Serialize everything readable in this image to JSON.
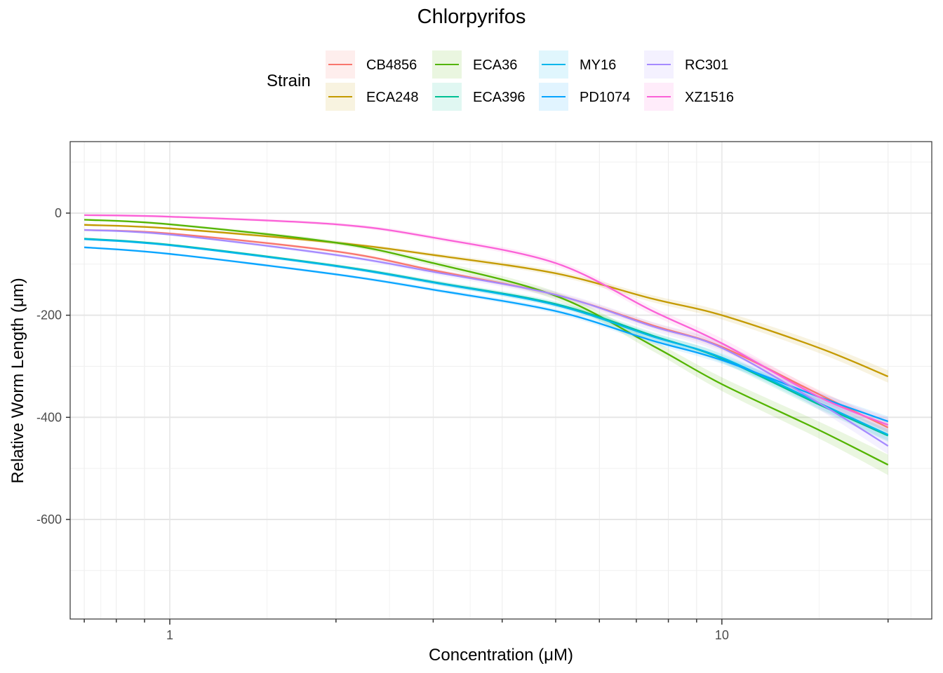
{
  "chart_data": {
    "type": "line",
    "title": "Chlorpyrifos",
    "xlabel": "Concentration (μM)",
    "ylabel": "Relative Worm Length (μm)",
    "x_scale": "log10",
    "xlim": [
      0.66,
      24
    ],
    "ylim": [
      -795,
      140
    ],
    "x_ticks": [
      {
        "value": 1,
        "label": "1"
      },
      {
        "value": 10,
        "label": "10"
      }
    ],
    "y_ticks": [
      {
        "value": 0,
        "label": "0"
      },
      {
        "value": -200,
        "label": "-200"
      },
      {
        "value": -400,
        "label": "-400"
      },
      {
        "value": -600,
        "label": "-600"
      }
    ],
    "x": [
      0.7,
      1,
      2,
      3,
      5,
      7.5,
      10,
      15,
      20
    ],
    "legend_title": "Strain",
    "legend_position": "top",
    "series": [
      {
        "name": "CB4856",
        "color": "#F8766D",
        "values": [
          -33,
          -40,
          -75,
          -112,
          -160,
          -220,
          -262,
          -355,
          -420
        ],
        "band": 8
      },
      {
        "name": "ECA248",
        "color": "#C49A00",
        "values": [
          -23,
          -30,
          -58,
          -82,
          -118,
          -168,
          -200,
          -264,
          -320
        ],
        "band": 10
      },
      {
        "name": "ECA36",
        "color": "#53B400",
        "values": [
          -13,
          -22,
          -58,
          -98,
          -162,
          -260,
          -335,
          -425,
          -493
        ],
        "band": 18
      },
      {
        "name": "ECA396",
        "color": "#00C094",
        "values": [
          -50,
          -62,
          -103,
          -135,
          -178,
          -240,
          -285,
          -375,
          -436
        ],
        "band": 10
      },
      {
        "name": "MY16",
        "color": "#00B6EB",
        "values": [
          -51,
          -63,
          -104,
          -136,
          -180,
          -242,
          -283,
          -372,
          -434
        ],
        "band": 10
      },
      {
        "name": "PD1074",
        "color": "#06A4FF",
        "values": [
          -67,
          -80,
          -120,
          -150,
          -192,
          -250,
          -288,
          -360,
          -408
        ],
        "band": 8
      },
      {
        "name": "RC301",
        "color": "#A58AFF",
        "values": [
          -33,
          -42,
          -82,
          -115,
          -160,
          -222,
          -264,
          -372,
          -456
        ],
        "band": 14
      },
      {
        "name": "XZ1516",
        "color": "#FB61D7",
        "values": [
          -4,
          -7,
          -22,
          -48,
          -98,
          -192,
          -255,
          -360,
          -415
        ],
        "band": 12
      }
    ]
  }
}
